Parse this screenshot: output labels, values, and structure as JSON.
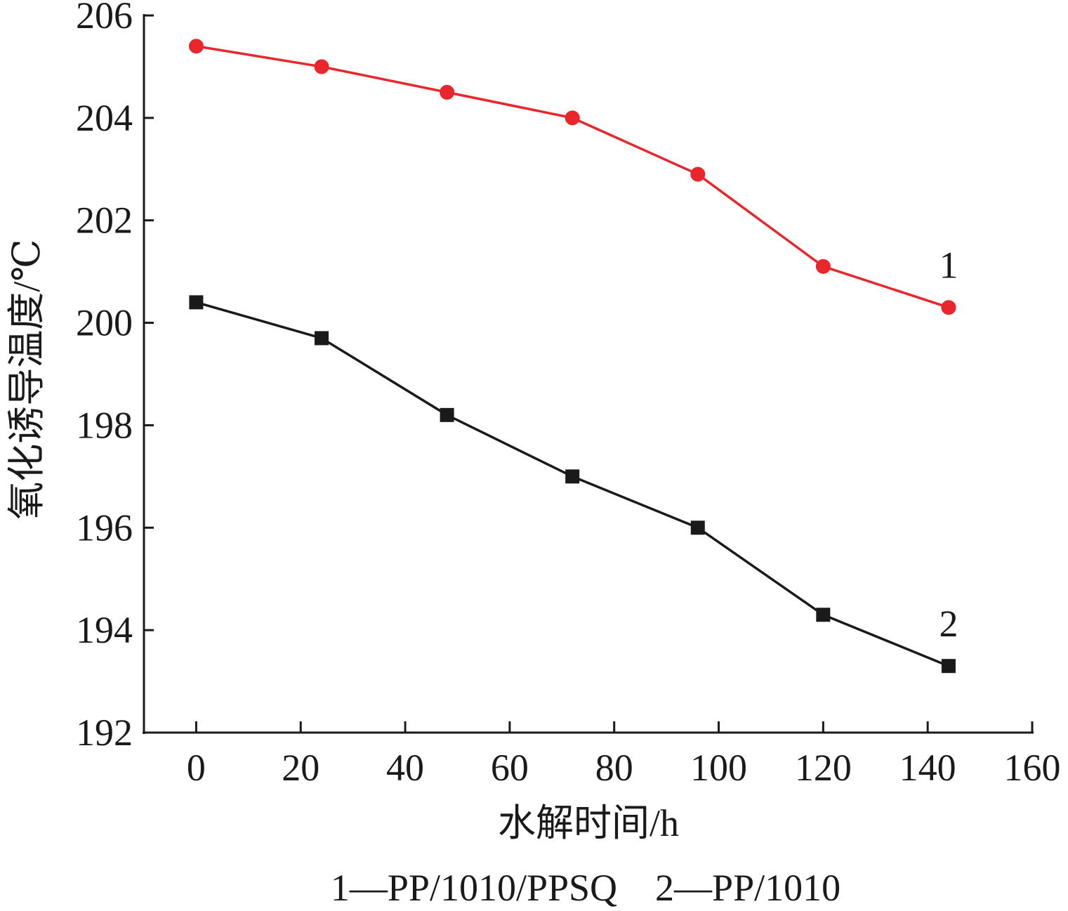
{
  "chart_data": {
    "type": "line",
    "x": [
      0,
      24,
      48,
      72,
      96,
      120,
      144
    ],
    "series": [
      {
        "name": "1",
        "values": [
          205.4,
          205.0,
          204.5,
          204.0,
          202.9,
          201.1,
          200.3
        ],
        "color": "#e8262b",
        "marker": "circle"
      },
      {
        "name": "2",
        "values": [
          200.4,
          199.7,
          198.2,
          197.0,
          196.0,
          194.3,
          193.3
        ],
        "color": "#1a1a1a",
        "marker": "square"
      }
    ],
    "xlabel": "水解时间/h",
    "ylabel": "氧化诱导温度/℃",
    "xlim": [
      -10,
      160
    ],
    "ylim": [
      192,
      206
    ],
    "xticks": [
      0,
      20,
      40,
      60,
      80,
      100,
      120,
      140,
      160
    ],
    "yticks": [
      192,
      194,
      196,
      198,
      200,
      202,
      204,
      206
    ],
    "grid": false,
    "legend": "none"
  },
  "caption": "1—PP/1010/PPSQ　2—PP/1010"
}
